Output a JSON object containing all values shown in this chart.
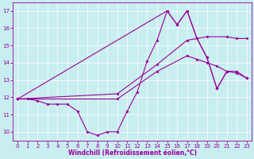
{
  "background_color": "#c8eef0",
  "line_color": "#990099",
  "xlabel": "Windchill (Refroidissement éolien,°C)",
  "xlim": [
    -0.5,
    23.5
  ],
  "ylim": [
    9.5,
    17.5
  ],
  "xticks": [
    0,
    1,
    2,
    3,
    4,
    5,
    6,
    7,
    8,
    9,
    10,
    11,
    12,
    13,
    14,
    15,
    16,
    17,
    18,
    19,
    20,
    21,
    22,
    23
  ],
  "yticks": [
    10,
    11,
    12,
    13,
    14,
    15,
    16,
    17
  ],
  "line1_x": [
    0,
    1,
    2,
    3,
    4,
    5,
    6,
    7,
    8,
    9,
    10,
    11,
    12,
    13,
    14,
    15,
    16,
    17,
    18,
    19,
    20,
    21
  ],
  "line1_y": [
    11.9,
    11.9,
    11.8,
    11.6,
    11.6,
    11.6,
    11.2,
    10.0,
    9.8,
    10.0,
    10.0,
    11.2,
    12.3,
    14.1,
    15.3,
    17.0,
    16.2,
    17.0,
    15.4,
    14.3,
    12.5,
    13.5
  ],
  "line2_x": [
    0,
    10,
    14,
    17,
    19,
    21,
    22,
    23
  ],
  "line2_y": [
    11.9,
    12.2,
    13.9,
    15.3,
    15.5,
    15.5,
    15.4,
    15.4
  ],
  "line3_x": [
    0,
    10,
    14,
    17,
    18,
    19,
    20,
    21,
    22,
    23
  ],
  "line3_y": [
    11.9,
    11.9,
    13.5,
    14.4,
    14.2,
    14.0,
    13.8,
    13.5,
    13.4,
    13.1
  ],
  "line4_x": [
    0,
    15,
    16,
    17,
    18,
    19,
    20,
    21,
    22,
    23
  ],
  "line4_y": [
    11.9,
    17.0,
    16.2,
    17.0,
    15.4,
    14.3,
    12.5,
    13.5,
    13.5,
    13.1
  ]
}
